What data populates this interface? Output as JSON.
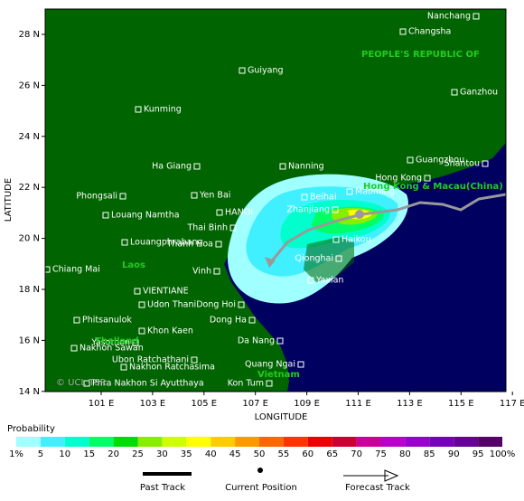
{
  "map": {
    "x_axis_label": "LONGITUDE",
    "y_axis_label": "LATITUDE",
    "x_ticks": [
      "101 E",
      "103 E",
      "105 E",
      "107 E",
      "109 E",
      "111 E",
      "113 E",
      "115 E",
      "117 E"
    ],
    "y_ticks": [
      "28 N",
      "26 N",
      "24 N",
      "22 N",
      "20 N",
      "18 N",
      "16 N",
      "14 N"
    ],
    "regions": [
      "PEOPLE'S REPUBLIC OF",
      "Hong Kong & Macau(China)",
      "Laos",
      "Thailand",
      "Vietnam"
    ],
    "places": [
      "Nanchang",
      "Changsha",
      "Guiyang",
      "Ganzhou",
      "Kunming",
      "Nanning",
      "Ha Giang",
      "Guangzhou",
      "Shantou",
      "Hong Kong",
      "Phongsali",
      "Yen Bai",
      "Beihai",
      "Maoming",
      "Louang Namtha",
      "HANOI",
      "Zhanjiang",
      "Thai Binh",
      "Louangphrabang",
      "Haikou",
      "Thanh Hoa",
      "Chiang Mai",
      "Vinh",
      "Qionghai",
      "Yaxian",
      "VIENTIANE",
      "Udon Thani",
      "Dong Hoi",
      "Phitsanulok",
      "Dong Ha",
      "Khon Kaen",
      "Yasothon",
      "Da Nang",
      "Nakhon Sawan",
      "Ubon Ratchathani",
      "Nakhon Ratchasima",
      "Quang Ngai",
      "Phra Nakhon Si Ayutthaya",
      "Kon Tum"
    ],
    "copyright": "© UCL TSR"
  },
  "legend": {
    "title": "Probability",
    "labels": [
      "1%",
      "5",
      "10",
      "15",
      "20",
      "25",
      "30",
      "35",
      "40",
      "45",
      "50",
      "55",
      "60",
      "65",
      "70",
      "75",
      "80",
      "85",
      "90",
      "95",
      "100%"
    ],
    "colors": [
      "#a0ffff",
      "#40f0ff",
      "#00ffcc",
      "#00ff66",
      "#00dd00",
      "#88ee00",
      "#ccff00",
      "#ffff00",
      "#ffcc00",
      "#ff9900",
      "#ff6600",
      "#ff3300",
      "#ee0000",
      "#cc0033",
      "#cc0099",
      "#bb00cc",
      "#9900cc",
      "#7700bb",
      "#660099",
      "#550066"
    ]
  },
  "key": [
    "Past Track",
    "Current Position",
    "Forecast Track"
  ]
}
